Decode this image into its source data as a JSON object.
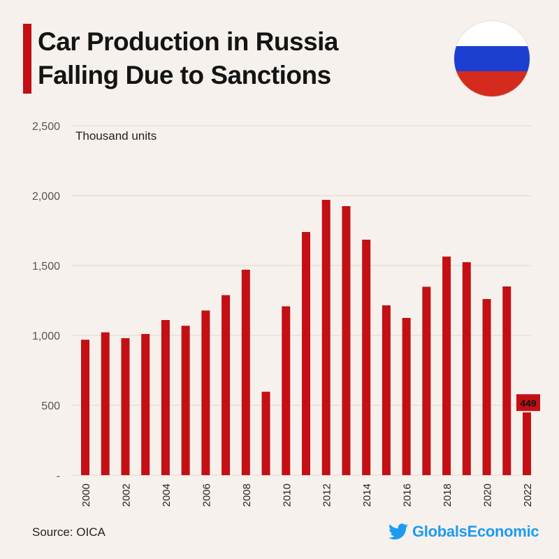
{
  "header": {
    "title_line1": "Car Production in Russia",
    "title_line2": "Falling Due to Sanctions",
    "accent_color": "#c40f14"
  },
  "flag": {
    "name": "russia-flag",
    "colors": [
      "#ffffff",
      "#1c3fd1",
      "#d52b1e"
    ]
  },
  "chart_data": {
    "type": "bar",
    "title": "Car Production in Russia Falling Due to Sanctions",
    "unit_label": "Thousand units",
    "categories": [
      "2000",
      "2001",
      "2002",
      "2003",
      "2004",
      "2005",
      "2006",
      "2007",
      "2008",
      "2009",
      "2010",
      "2011",
      "2012",
      "2013",
      "2014",
      "2015",
      "2016",
      "2017",
      "2018",
      "2019",
      "2020",
      "2021",
      "2022"
    ],
    "x_tick_labels": [
      "2000",
      "2002",
      "2004",
      "2006",
      "2008",
      "2010",
      "2012",
      "2014",
      "2016",
      "2018",
      "2020",
      "2022"
    ],
    "values": [
      969,
      1022,
      980,
      1010,
      1110,
      1069,
      1178,
      1288,
      1470,
      597,
      1208,
      1740,
      1970,
      1925,
      1685,
      1215,
      1125,
      1348,
      1564,
      1524,
      1260,
      1350,
      449
    ],
    "y_ticks": [
      0,
      500,
      1000,
      1500,
      2000,
      2500
    ],
    "y_tick_labels": [
      "-",
      "500",
      "1,000",
      "1,500",
      "2,000",
      "2,500"
    ],
    "ylim": [
      0,
      2500
    ],
    "highlight": {
      "category": "2022",
      "label": "449"
    },
    "bar_color": "#c40f14",
    "grid": true
  },
  "footer": {
    "source": "Source: OICA",
    "brand": "GlobalsEconomic",
    "brand_color": "#1d9bf0"
  }
}
